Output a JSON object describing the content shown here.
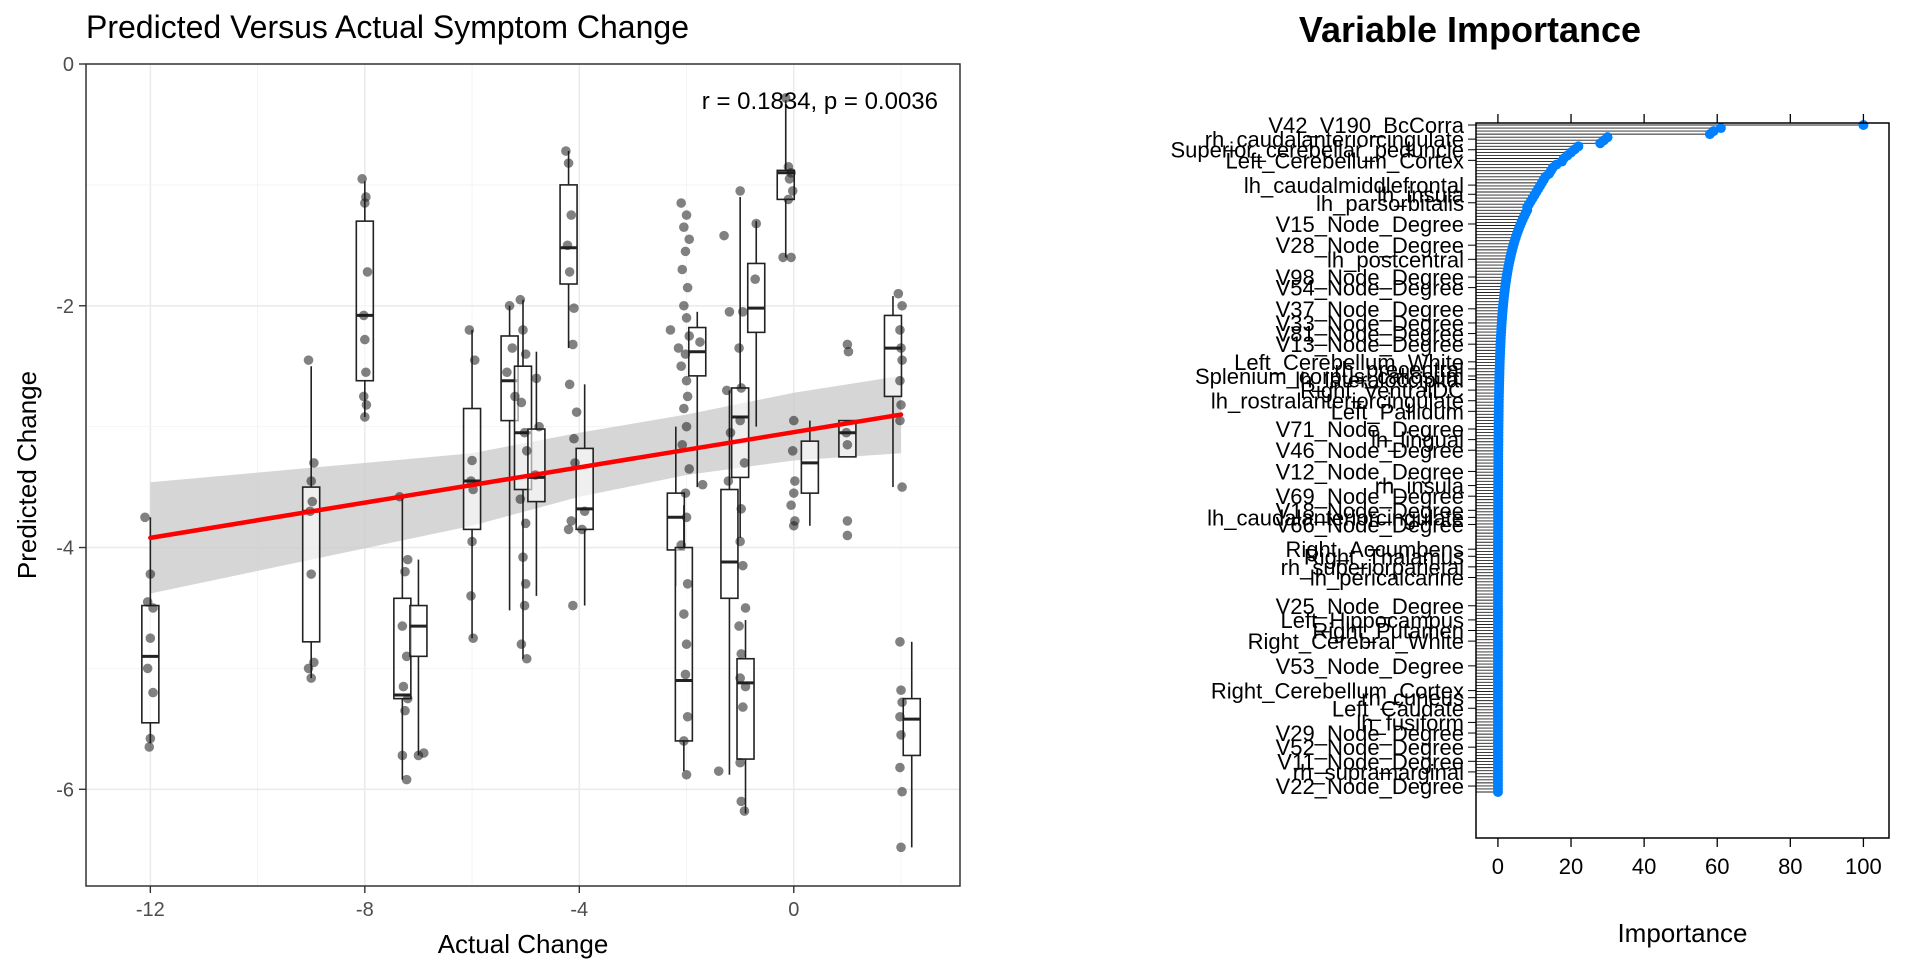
{
  "chart_data": [
    {
      "type": "scatter",
      "title": "Predicted Versus Actual Symptom Change",
      "xlabel": "Actual Change",
      "ylabel": "Predicted Change",
      "xlim": [
        -13.2,
        3.1
      ],
      "ylim": [
        -6.8,
        0
      ],
      "x_ticks": [
        -12,
        -8,
        -4,
        0
      ],
      "x_tick_labels": [
        "-12",
        "-8",
        "-4",
        "0"
      ],
      "y_ticks": [
        0,
        -2,
        -4,
        -6
      ],
      "y_tick_labels": [
        "0",
        "-2",
        "-4",
        "-6"
      ],
      "annotation": "r = 0.1834, p = 0.0036",
      "grid": true,
      "regression": {
        "x0": -12,
        "y0": -3.92,
        "x1": 2,
        "y1": -2.9,
        "color": "#ff0000",
        "band_color": "#cccccc",
        "band_lower": [
          [
            -12,
            -4.38
          ],
          [
            -6,
            -3.82
          ],
          [
            -4,
            -3.58
          ],
          [
            -2,
            -3.4
          ],
          [
            0,
            -3.28
          ],
          [
            2,
            -3.22
          ]
        ],
        "band_upper": [
          [
            -12,
            -3.46
          ],
          [
            -6,
            -3.22
          ],
          [
            -4,
            -3.05
          ],
          [
            -2,
            -2.9
          ],
          [
            0,
            -2.72
          ],
          [
            2,
            -2.58
          ]
        ]
      },
      "boxes": [
        {
          "x": -12,
          "q1": -5.45,
          "med": -4.9,
          "q3": -4.48,
          "lo": -5.62,
          "hi": -3.75
        },
        {
          "x": -9,
          "q1": -4.78,
          "med": -3.7,
          "q3": -3.5,
          "lo": -5.08,
          "hi": -2.5
        },
        {
          "x": -8,
          "q1": -2.62,
          "med": -2.08,
          "q3": -1.3,
          "lo": -2.92,
          "hi": -0.97
        },
        {
          "x": -7.3,
          "q1": -5.25,
          "med": -5.22,
          "q3": -4.42,
          "lo": -5.92,
          "hi": -3.58
        },
        {
          "x": -7.0,
          "q1": -4.9,
          "med": -4.65,
          "q3": -4.48,
          "lo": -5.72,
          "hi": -4.1
        },
        {
          "x": -6,
          "q1": -3.85,
          "med": -3.45,
          "q3": -2.85,
          "lo": -4.75,
          "hi": -2.2
        },
        {
          "x": -5.3,
          "q1": -2.95,
          "med": -2.62,
          "q3": -2.25,
          "lo": -4.52,
          "hi": -2.0
        },
        {
          "x": -5.05,
          "q1": -3.52,
          "med": -3.05,
          "q3": -2.5,
          "lo": -4.92,
          "hi": -1.95
        },
        {
          "x": -4.8,
          "q1": -3.62,
          "med": -3.42,
          "q3": -3.02,
          "lo": -4.4,
          "hi": -2.38
        },
        {
          "x": -4.2,
          "q1": -1.82,
          "med": -1.52,
          "q3": -1.0,
          "lo": -2.35,
          "hi": -0.72
        },
        {
          "x": -3.9,
          "q1": -3.85,
          "med": -3.68,
          "q3": -3.18,
          "lo": -4.48,
          "hi": -2.65
        },
        {
          "x": -2.2,
          "q1": -4.02,
          "med": -3.75,
          "q3": -3.55,
          "lo": -4.32,
          "hi": -3.0
        },
        {
          "x": -2.05,
          "q1": -5.6,
          "med": -5.1,
          "q3": -4.0,
          "lo": -5.85,
          "hi": -3.65
        },
        {
          "x": -1.8,
          "q1": -2.58,
          "med": -2.38,
          "q3": -2.18,
          "lo": -3.5,
          "hi": -2.05
        },
        {
          "x": -1.2,
          "q1": -4.42,
          "med": -4.12,
          "q3": -3.52,
          "lo": -5.88,
          "hi": -2.7
        },
        {
          "x": -1.0,
          "q1": -3.42,
          "med": -2.92,
          "q3": -2.68,
          "lo": -3.92,
          "hi": -1.1
        },
        {
          "x": -0.9,
          "q1": -5.75,
          "med": -5.12,
          "q3": -4.92,
          "lo": -6.2,
          "hi": -4.6
        },
        {
          "x": -0.7,
          "q1": -2.22,
          "med": -2.02,
          "q3": -1.65,
          "lo": -3.0,
          "hi": -1.3
        },
        {
          "x": -0.15,
          "q1": -1.12,
          "med": -0.9,
          "q3": -0.88,
          "lo": -1.6,
          "hi": -0.3
        },
        {
          "x": 0.3,
          "q1": -3.55,
          "med": -3.3,
          "q3": -3.12,
          "lo": -3.82,
          "hi": -2.95
        },
        {
          "x": 1.0,
          "q1": -3.25,
          "med": -3.05,
          "q3": -2.95,
          "lo": -3.25,
          "hi": -2.95
        },
        {
          "x": 1.85,
          "q1": -2.75,
          "med": -2.35,
          "q3": -2.08,
          "lo": -3.5,
          "hi": -1.92
        },
        {
          "x": 2.2,
          "q1": -5.72,
          "med": -5.42,
          "q3": -5.25,
          "lo": -6.48,
          "hi": -4.78
        }
      ],
      "points": [
        [
          -12.1,
          -3.75
        ],
        [
          -12.0,
          -4.22
        ],
        [
          -12.05,
          -4.45
        ],
        [
          -11.95,
          -4.5
        ],
        [
          -12.0,
          -4.75
        ],
        [
          -12.05,
          -5.0
        ],
        [
          -11.95,
          -5.2
        ],
        [
          -12.0,
          -5.58
        ],
        [
          -12.02,
          -5.65
        ],
        [
          -9.05,
          -2.45
        ],
        [
          -8.95,
          -3.3
        ],
        [
          -9.0,
          -3.45
        ],
        [
          -8.98,
          -3.62
        ],
        [
          -9.02,
          -3.7
        ],
        [
          -9.0,
          -4.22
        ],
        [
          -8.95,
          -4.95
        ],
        [
          -9.05,
          -5.0
        ],
        [
          -9.0,
          -5.08
        ],
        [
          -8.05,
          -0.95
        ],
        [
          -7.98,
          -1.1
        ],
        [
          -8.0,
          -1.15
        ],
        [
          -7.95,
          -1.72
        ],
        [
          -8.02,
          -2.08
        ],
        [
          -8.0,
          -2.28
        ],
        [
          -7.98,
          -2.55
        ],
        [
          -8.02,
          -2.75
        ],
        [
          -7.97,
          -2.82
        ],
        [
          -8.0,
          -2.92
        ],
        [
          -7.35,
          -3.58
        ],
        [
          -7.2,
          -4.1
        ],
        [
          -7.25,
          -4.2
        ],
        [
          -7.3,
          -4.65
        ],
        [
          -7.22,
          -4.9
        ],
        [
          -7.28,
          -5.15
        ],
        [
          -7.2,
          -5.25
        ],
        [
          -7.25,
          -5.35
        ],
        [
          -7.3,
          -5.72
        ],
        [
          -7.22,
          -5.92
        ],
        [
          -7.0,
          -5.72
        ],
        [
          -6.9,
          -5.7
        ],
        [
          -6.05,
          -2.2
        ],
        [
          -5.95,
          -2.45
        ],
        [
          -6.0,
          -3.28
        ],
        [
          -6.02,
          -3.45
        ],
        [
          -5.98,
          -3.52
        ],
        [
          -6.0,
          -3.95
        ],
        [
          -6.02,
          -4.4
        ],
        [
          -5.98,
          -4.75
        ],
        [
          -5.3,
          -2.0
        ],
        [
          -5.25,
          -2.35
        ],
        [
          -5.35,
          -2.55
        ],
        [
          -5.2,
          -2.75
        ],
        [
          -5.1,
          -1.95
        ],
        [
          -5.05,
          -2.2
        ],
        [
          -5.0,
          -2.4
        ],
        [
          -5.08,
          -2.8
        ],
        [
          -5.02,
          -3.05
        ],
        [
          -4.98,
          -3.2
        ],
        [
          -5.1,
          -3.6
        ],
        [
          -5.0,
          -3.8
        ],
        [
          -5.05,
          -4.08
        ],
        [
          -5.0,
          -4.3
        ],
        [
          -5.02,
          -4.48
        ],
        [
          -5.08,
          -4.8
        ],
        [
          -4.98,
          -4.92
        ],
        [
          -4.8,
          -2.6
        ],
        [
          -4.75,
          -3.0
        ],
        [
          -4.82,
          -3.4
        ],
        [
          -4.25,
          -0.72
        ],
        [
          -4.2,
          -0.82
        ],
        [
          -4.15,
          -1.25
        ],
        [
          -4.22,
          -1.5
        ],
        [
          -4.18,
          -1.72
        ],
        [
          -4.1,
          -2.02
        ],
        [
          -4.12,
          -2.32
        ],
        [
          -4.18,
          -2.65
        ],
        [
          -4.05,
          -2.88
        ],
        [
          -4.1,
          -3.1
        ],
        [
          -4.08,
          -3.3
        ],
        [
          -4.15,
          -3.78
        ],
        [
          -4.2,
          -3.85
        ],
        [
          -4.12,
          -4.48
        ],
        [
          -3.9,
          -3.7
        ],
        [
          -3.95,
          -3.85
        ],
        [
          -2.3,
          -2.2
        ],
        [
          -2.15,
          -2.35
        ],
        [
          -2.1,
          -1.15
        ],
        [
          -2.0,
          -1.25
        ],
        [
          -2.05,
          -1.35
        ],
        [
          -1.95,
          -1.45
        ],
        [
          -2.02,
          -1.55
        ],
        [
          -2.08,
          -1.7
        ],
        [
          -1.98,
          -1.85
        ],
        [
          -2.05,
          -2.0
        ],
        [
          -2.0,
          -2.1
        ],
        [
          -1.95,
          -2.25
        ],
        [
          -2.02,
          -2.4
        ],
        [
          -2.1,
          -2.5
        ],
        [
          -2.0,
          -2.62
        ],
        [
          -1.98,
          -2.75
        ],
        [
          -2.05,
          -2.85
        ],
        [
          -2.0,
          -3.0
        ],
        [
          -2.08,
          -3.15
        ],
        [
          -1.95,
          -3.35
        ],
        [
          -2.02,
          -3.55
        ],
        [
          -2.0,
          -3.75
        ],
        [
          -2.1,
          -3.98
        ],
        [
          -1.98,
          -4.3
        ],
        [
          -2.05,
          -4.55
        ],
        [
          -2.0,
          -4.8
        ],
        [
          -2.02,
          -5.05
        ],
        [
          -1.98,
          -5.4
        ],
        [
          -2.05,
          -5.6
        ],
        [
          -2.0,
          -5.88
        ],
        [
          -1.75,
          -2.3
        ],
        [
          -1.7,
          -3.48
        ],
        [
          -1.3,
          -1.42
        ],
        [
          -1.2,
          -2.05
        ],
        [
          -1.25,
          -2.7
        ],
        [
          -1.18,
          -3.05
        ],
        [
          -1.22,
          -3.45
        ],
        [
          -1.4,
          -5.85
        ],
        [
          -1.0,
          -1.05
        ],
        [
          -0.95,
          -2.05
        ],
        [
          -1.02,
          -2.35
        ],
        [
          -0.98,
          -2.68
        ],
        [
          -1.0,
          -2.95
        ],
        [
          -0.92,
          -3.3
        ],
        [
          -0.98,
          -3.68
        ],
        [
          -1.0,
          -3.95
        ],
        [
          -0.95,
          -4.15
        ],
        [
          -0.9,
          -4.5
        ],
        [
          -1.02,
          -4.65
        ],
        [
          -0.98,
          -4.88
        ],
        [
          -1.0,
          -5.08
        ],
        [
          -0.95,
          -5.32
        ],
        [
          -1.0,
          -5.78
        ],
        [
          -0.98,
          -6.1
        ],
        [
          -0.92,
          -6.18
        ],
        [
          -0.9,
          -5.15
        ],
        [
          -0.7,
          -1.32
        ],
        [
          -0.72,
          -1.78
        ],
        [
          -0.15,
          -0.28
        ],
        [
          -0.1,
          -0.85
        ],
        [
          -0.05,
          -0.9
        ],
        [
          -0.08,
          -0.95
        ],
        [
          -0.02,
          -1.05
        ],
        [
          -0.1,
          -1.12
        ],
        [
          -0.05,
          -1.6
        ],
        [
          -0.2,
          -1.6
        ],
        [
          0.0,
          -2.95
        ],
        [
          -0.02,
          -3.2
        ],
        [
          0.02,
          -3.45
        ],
        [
          0.0,
          -3.55
        ],
        [
          -0.05,
          -3.65
        ],
        [
          0.02,
          -3.78
        ],
        [
          0.0,
          -3.82
        ],
        [
          1.0,
          -2.32
        ],
        [
          1.02,
          -2.38
        ],
        [
          0.98,
          -3.05
        ],
        [
          1.0,
          -3.15
        ],
        [
          1.0,
          -3.78
        ],
        [
          1.0,
          -3.9
        ],
        [
          1.95,
          -1.9
        ],
        [
          2.02,
          -2.0
        ],
        [
          1.98,
          -2.2
        ],
        [
          2.0,
          -2.35
        ],
        [
          2.02,
          -2.45
        ],
        [
          1.98,
          -2.62
        ],
        [
          2.0,
          -2.82
        ],
        [
          1.98,
          -2.95
        ],
        [
          2.02,
          -3.5
        ],
        [
          1.98,
          -4.78
        ],
        [
          2.0,
          -5.18
        ],
        [
          2.02,
          -5.28
        ],
        [
          1.98,
          -5.4
        ],
        [
          2.0,
          -5.55
        ],
        [
          1.98,
          -5.82
        ],
        [
          2.02,
          -6.02
        ],
        [
          2.0,
          -6.48
        ]
      ]
    },
    {
      "type": "scatter",
      "title": "Variable Importance",
      "xlabel": "Importance",
      "xlim": [
        -6,
        107
      ],
      "x_ticks": [
        0,
        20,
        40,
        60,
        80,
        100
      ],
      "x_tick_labels": [
        "0",
        "20",
        "40",
        "60",
        "80",
        "100"
      ],
      "point_color": "#0080ff",
      "n_variables": 220,
      "top_values": [
        100,
        61,
        59,
        58,
        30,
        29,
        28,
        22,
        21,
        20,
        19,
        18,
        17.5,
        16,
        15,
        14.5,
        14,
        13,
        12.5,
        12,
        11.5,
        11,
        10.5,
        10,
        9.5,
        9,
        8.5,
        8
      ],
      "labels": [
        "V42_V190_BcCorra",
        "rh_caudalanteriorcingulate",
        "Superior_cerebellar_peduncle",
        "Left_Cerebellum_Cortex",
        "lh_caudalmiddlefrontal",
        "lh_insula",
        "lh_parsorbitalis",
        "V15_Node_Degree",
        "V28_Node_Degree",
        "lh_postcentral",
        "V98_Node_Degree",
        "V54_Node_Degree",
        "V37_Node_Degree",
        "V33_Node_Degree",
        "V81_Node_Degree",
        "V13_Node_Degree",
        "Left_Cerebellum_White",
        "rh_precentral",
        "Splenium_corpus_callosum",
        "lh_lateraloccipital",
        "Right_VentralDC",
        "lh_rostralanteriorcingulate",
        "Left_Pallidum",
        "V71_Node_Degree",
        "lh_lingual",
        "V46_Node_Degree",
        "V12_Node_Degree",
        "rh_insula",
        "V69_Node_Degree",
        "V18_Node_Degree",
        "lh_caudalanteriorcingulate",
        "V66_Node_Degree",
        "Right_Accumbens",
        "Right_Thalamus",
        "rh_superiorparietal",
        "lh_pericalcarine",
        "V25_Node_Degree",
        "Left_Hippocampus",
        "Right_Putamen",
        "Right_Cerebral_White",
        "V53_Node_Degree",
        "Right_Cerebellum_Cortex",
        "rh_cuneus",
        "Left_Caudate",
        "lh_fusiform",
        "V29_Node_Degree",
        "V52_Node_Degree",
        "V11_Node_Degree",
        "rh_supramarginal",
        "V22_Node_Degree"
      ],
      "label_y_norm": [
        0.0,
        0.02,
        0.035,
        0.05,
        0.085,
        0.098,
        0.11,
        0.14,
        0.17,
        0.19,
        0.215,
        0.23,
        0.26,
        0.28,
        0.295,
        0.31,
        0.335,
        0.345,
        0.355,
        0.36,
        0.375,
        0.39,
        0.405,
        0.43,
        0.445,
        0.46,
        0.49,
        0.51,
        0.525,
        0.545,
        0.555,
        0.565,
        0.6,
        0.61,
        0.625,
        0.64,
        0.68,
        0.7,
        0.715,
        0.73,
        0.765,
        0.8,
        0.81,
        0.825,
        0.845,
        0.86,
        0.88,
        0.9,
        0.915,
        0.935
      ]
    }
  ]
}
